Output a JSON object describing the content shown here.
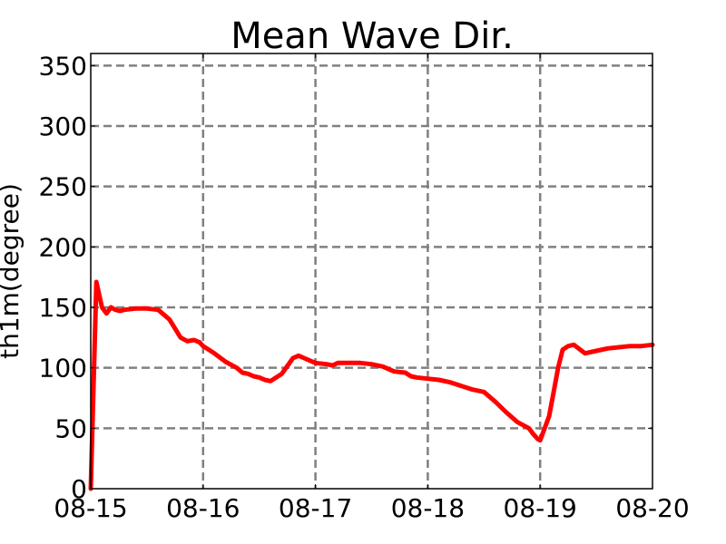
{
  "chart_data": {
    "type": "line",
    "title": "Mean Wave Dir.",
    "xlabel": "",
    "ylabel": "th1m(degree)",
    "x_tick_labels": [
      "08-15",
      "08-16",
      "08-17",
      "08-18",
      "08-19",
      "08-20"
    ],
    "y_ticks": [
      0,
      50,
      100,
      150,
      200,
      250,
      300,
      350
    ],
    "xlim": [
      "08-15 00:00",
      "08-20 00:00"
    ],
    "ylim": [
      0,
      360
    ],
    "grid": true,
    "grid_style": "dashed",
    "legend": "none",
    "series": [
      {
        "color": "#ff0000",
        "x_unit": "days since 08-15 00:00",
        "x": [
          0.0,
          0.05,
          0.1,
          0.14,
          0.18,
          0.22,
          0.26,
          0.3,
          0.4,
          0.5,
          0.6,
          0.7,
          0.8,
          0.86,
          0.92,
          0.97,
          1.0,
          1.1,
          1.2,
          1.3,
          1.35,
          1.4,
          1.45,
          1.5,
          1.55,
          1.6,
          1.7,
          1.8,
          1.85,
          1.9,
          1.95,
          2.0,
          2.1,
          2.15,
          2.2,
          2.4,
          2.5,
          2.6,
          2.7,
          2.8,
          2.85,
          2.9,
          3.0,
          3.1,
          3.2,
          3.3,
          3.4,
          3.5,
          3.6,
          3.7,
          3.8,
          3.9,
          3.94,
          3.98,
          4.0,
          4.04,
          4.08,
          4.12,
          4.16,
          4.2,
          4.25,
          4.3,
          4.4,
          4.5,
          4.6,
          4.7,
          4.8,
          4.9,
          5.0
        ],
        "y": [
          0,
          171,
          150,
          145,
          150,
          148,
          147,
          148,
          149,
          149,
          148,
          140,
          125,
          122,
          123,
          121,
          118,
          112,
          105,
          100,
          96,
          95,
          93,
          92,
          90,
          89,
          95,
          108,
          110,
          108,
          106,
          104,
          103,
          102,
          104,
          104,
          103,
          101,
          97,
          96,
          93,
          92,
          91,
          90,
          88,
          85,
          82,
          80,
          72,
          63,
          55,
          50,
          45,
          41,
          40,
          50,
          60,
          80,
          100,
          115,
          118,
          119,
          112,
          114,
          116,
          117,
          118,
          118,
          119
        ]
      }
    ]
  }
}
